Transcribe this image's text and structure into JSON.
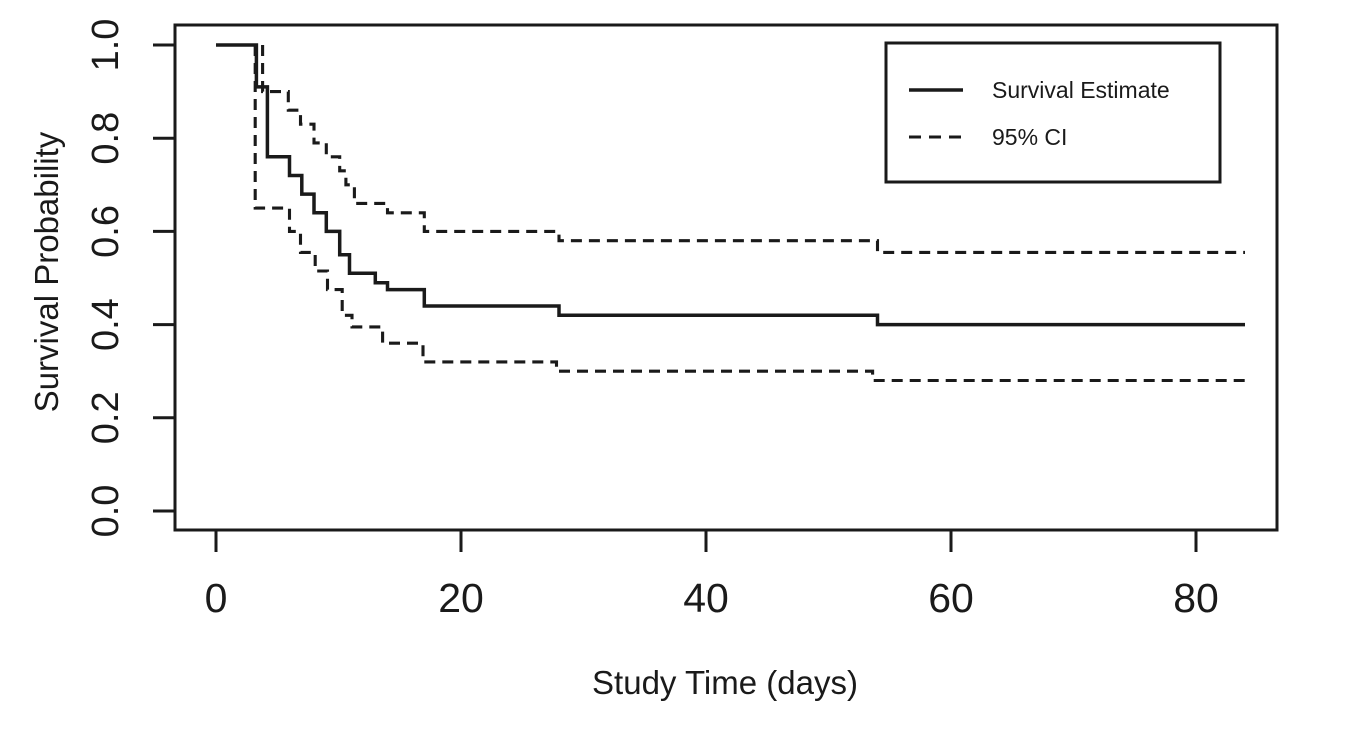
{
  "figure": {
    "background_color": "#ffffff",
    "line_color": "#1a1a1a"
  },
  "chart_data": {
    "type": "line",
    "subtype": "kaplan-meier-step-function",
    "title": "",
    "xlabel": "Study Time (days)",
    "ylabel": "Survival Probability",
    "xlim": [
      -3.4,
      86.6
    ],
    "ylim": [
      -0.04,
      1.04
    ],
    "x_ticks": [
      0,
      20,
      40,
      60,
      80
    ],
    "y_ticks": [
      0.0,
      0.2,
      0.4,
      0.6,
      0.8,
      1.0
    ],
    "x_tick_labels": [
      "0",
      "20",
      "40",
      "60",
      "80"
    ],
    "y_tick_labels": [
      "0.0",
      "0.2",
      "0.4",
      "0.6",
      "0.8",
      "1.0"
    ],
    "grid": false,
    "legend": {
      "position": "top-right",
      "entries": [
        {
          "label": "Survival Estimate",
          "style": "solid"
        },
        {
          "label": "95% CI",
          "style": "dashed"
        }
      ]
    },
    "series": [
      {
        "name": "Survival Estimate",
        "style": "solid",
        "start": [
          0,
          1.0
        ],
        "steps": [
          [
            3.3,
            0.91
          ],
          [
            4.2,
            0.76
          ],
          [
            6.0,
            0.72
          ],
          [
            7.0,
            0.68
          ],
          [
            8.0,
            0.64
          ],
          [
            9.0,
            0.6
          ],
          [
            10.1,
            0.55
          ],
          [
            10.9,
            0.51
          ],
          [
            13.0,
            0.49
          ],
          [
            14.0,
            0.475
          ],
          [
            17.0,
            0.44
          ],
          [
            28.0,
            0.42
          ],
          [
            54.0,
            0.4
          ]
        ],
        "end_x": 84
      },
      {
        "name": "95% CI upper",
        "style": "dashed",
        "start": [
          3.8,
          1.0
        ],
        "steps": [
          [
            3.8,
            0.9
          ],
          [
            5.9,
            0.86
          ],
          [
            6.9,
            0.83
          ],
          [
            8.0,
            0.79
          ],
          [
            9.0,
            0.76
          ],
          [
            10.1,
            0.73
          ],
          [
            10.6,
            0.7
          ],
          [
            11.3,
            0.66
          ],
          [
            14.0,
            0.64
          ],
          [
            17.0,
            0.6
          ],
          [
            28.0,
            0.58
          ],
          [
            54.0,
            0.555
          ]
        ],
        "end_x": 84
      },
      {
        "name": "95% CI lower",
        "style": "dashed",
        "start": [
          3.2,
          1.0
        ],
        "steps": [
          [
            3.2,
            0.65
          ],
          [
            6.0,
            0.6
          ],
          [
            6.9,
            0.555
          ],
          [
            8.1,
            0.515
          ],
          [
            9.1,
            0.475
          ],
          [
            10.3,
            0.42
          ],
          [
            11.1,
            0.395
          ],
          [
            13.6,
            0.36
          ],
          [
            16.9,
            0.32
          ],
          [
            27.8,
            0.3
          ],
          [
            53.6,
            0.28
          ]
        ],
        "end_x": 84
      }
    ]
  }
}
